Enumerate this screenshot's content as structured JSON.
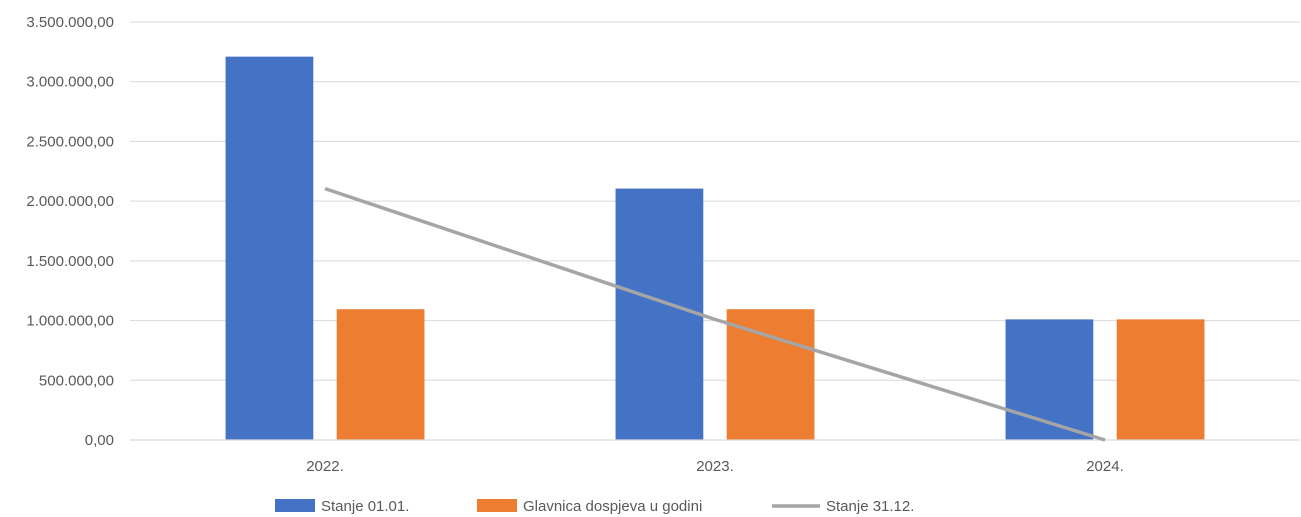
{
  "chart_data": {
    "type": "bar",
    "categories": [
      "2022.",
      "2023.",
      "2024."
    ],
    "series": [
      {
        "name": "Stanje  01.01.",
        "type": "bar",
        "color": "#4472c4",
        "values": [
          3210000,
          2105000,
          1010000
        ]
      },
      {
        "name": "Glavnica  dospjeva u  godini",
        "type": "bar",
        "color": "#ed7d31",
        "values": [
          1095000,
          1095000,
          1010000
        ]
      },
      {
        "name": "Stanje   31.12.",
        "type": "line",
        "color": "#a5a5a5",
        "values": [
          2105000,
          1010000,
          0
        ]
      }
    ],
    "y_ticks": [
      "0,00",
      "500.000,00",
      "1.000.000,00",
      "1.500.000,00",
      "2.000.000,00",
      "2.500.000,00",
      "3.000.000,00",
      "3.500.000,00"
    ],
    "ylim": [
      0,
      3500000
    ],
    "grid": true,
    "legend_position": "bottom",
    "title": "",
    "xlabel": "",
    "ylabel": ""
  }
}
